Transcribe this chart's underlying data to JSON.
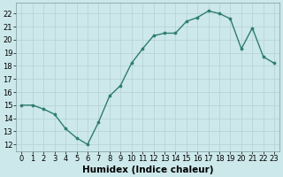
{
  "x": [
    0,
    1,
    2,
    3,
    4,
    5,
    6,
    7,
    8,
    9,
    10,
    11,
    12,
    13,
    14,
    15,
    16,
    17,
    18,
    19,
    20,
    21,
    22,
    23
  ],
  "y": [
    15.0,
    15.0,
    14.7,
    14.3,
    13.2,
    12.5,
    12.0,
    13.7,
    15.7,
    16.5,
    18.2,
    19.3,
    20.3,
    20.5,
    20.5,
    21.4,
    21.7,
    22.2,
    22.0,
    21.6,
    19.3,
    20.9,
    18.7,
    18.2
  ],
  "line_color": "#2e7d6e",
  "marker": "o",
  "marker_size": 2.2,
  "bg_color": "#cce8ea",
  "grid_color": "#b8d4d6",
  "xlabel": "Humidex (Indice chaleur)",
  "ylim": [
    11.5,
    22.8
  ],
  "xlim": [
    -0.5,
    23.5
  ],
  "yticks": [
    12,
    13,
    14,
    15,
    16,
    17,
    18,
    19,
    20,
    21,
    22
  ],
  "xticks": [
    0,
    1,
    2,
    3,
    4,
    5,
    6,
    7,
    8,
    9,
    10,
    11,
    12,
    13,
    14,
    15,
    16,
    17,
    18,
    19,
    20,
    21,
    22,
    23
  ],
  "tick_fontsize": 6.0,
  "xlabel_fontsize": 7.5,
  "line_width": 1.0
}
